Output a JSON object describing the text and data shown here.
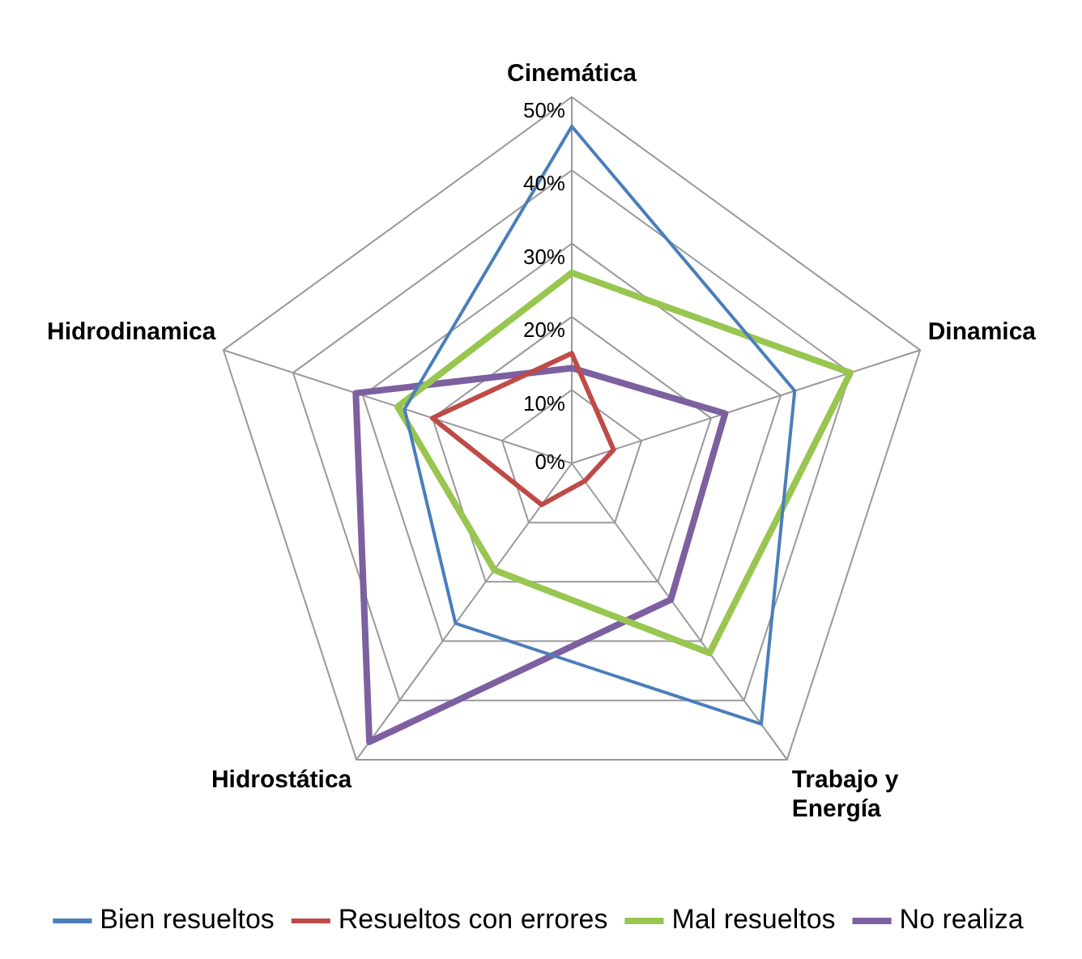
{
  "chart_data": {
    "type": "radar",
    "categories": [
      "Cinemática",
      "Dinamica",
      "Trabajo y Energía",
      "Hidrostática",
      "Hidrodinamica"
    ],
    "series": [
      {
        "name": "Bien resueltos",
        "color": "#4a7ebb",
        "values": [
          46,
          32,
          44,
          27,
          24
        ]
      },
      {
        "name": "Resueltos con errores",
        "color": "#be4b48",
        "values": [
          15,
          6,
          3,
          7,
          20
        ]
      },
      {
        "name": "Mal resueltos",
        "color": "#98c650",
        "values": [
          26,
          40,
          32,
          18,
          25
        ]
      },
      {
        "name": "No realiza",
        "color": "#7d60a0",
        "values": [
          13,
          22,
          23,
          47,
          31
        ]
      }
    ],
    "ylim": [
      0,
      50
    ],
    "yticks": [
      {
        "value": 0,
        "label": "0%"
      },
      {
        "value": 10,
        "label": "10%"
      },
      {
        "value": 20,
        "label": "20%"
      },
      {
        "value": 30,
        "label": "30%"
      },
      {
        "value": 40,
        "label": "40%"
      },
      {
        "value": 50,
        "label": "50%"
      }
    ],
    "grid": true,
    "legend": "bottom",
    "marker": "none",
    "line_style": "solid"
  }
}
